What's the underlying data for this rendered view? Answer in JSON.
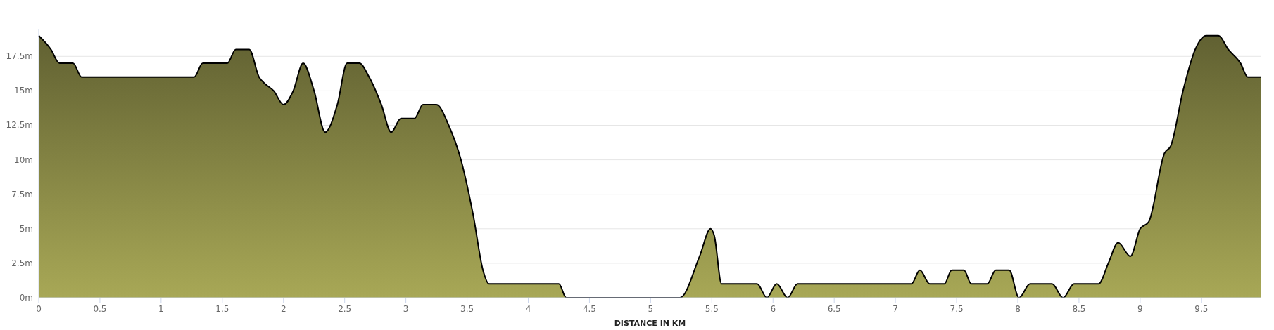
{
  "chart_data": {
    "type": "area",
    "xlabel": "DISTANCE IN KM",
    "xlim": [
      0,
      9.99
    ],
    "ylim": [
      0,
      19.5
    ],
    "xticks": [
      0,
      0.5,
      1,
      1.5,
      2,
      2.5,
      3,
      3.5,
      4,
      4.5,
      5,
      5.5,
      6,
      6.5,
      7,
      7.5,
      8,
      8.5,
      9,
      9.5
    ],
    "yticks": [
      {
        "value": 0,
        "label": "0m"
      },
      {
        "value": 2.5,
        "label": "2.5m"
      },
      {
        "value": 5,
        "label": "5m"
      },
      {
        "value": 7.5,
        "label": "7.5m"
      },
      {
        "value": 10,
        "label": "10m"
      },
      {
        "value": 12.5,
        "label": "12.5m"
      },
      {
        "value": 15,
        "label": "15m"
      },
      {
        "value": 17.5,
        "label": "17.5m"
      }
    ],
    "grid": "y",
    "series": [
      {
        "color": "#a8a856",
        "x": [
          0,
          0.1,
          0.17,
          0.28,
          0.35,
          1.27,
          1.34,
          1.54,
          1.61,
          1.72,
          1.8,
          1.85,
          1.92,
          2.0,
          2.08,
          2.16,
          2.25,
          2.34,
          2.44,
          2.52,
          2.62,
          2.7,
          2.8,
          2.88,
          2.96,
          3.07,
          3.14,
          3.25,
          3.35,
          3.45,
          3.55,
          3.63,
          3.68,
          4.25,
          4.31,
          5.24,
          5.4,
          5.49,
          5.52,
          5.58,
          5.87,
          5.95,
          6.03,
          6.12,
          6.2,
          7.13,
          7.2,
          7.28,
          7.4,
          7.46,
          7.56,
          7.62,
          7.75,
          7.82,
          7.93,
          8.01,
          8.1,
          8.28,
          8.37,
          8.46,
          8.66,
          8.74,
          8.82,
          8.92,
          9.0,
          9.07,
          9.2,
          9.25,
          9.35,
          9.45,
          9.54,
          9.64,
          9.72,
          9.82,
          9.88,
          9.99
        ],
        "values": [
          19,
          18,
          17,
          17,
          16,
          16,
          17,
          17,
          18,
          18,
          16,
          15.5,
          15,
          14,
          15,
          17,
          15,
          12,
          14,
          17,
          17,
          16,
          14,
          12,
          13,
          13,
          14,
          14,
          12.5,
          10,
          6,
          2,
          1,
          1,
          0,
          0,
          3,
          5,
          4.5,
          1,
          1,
          0,
          1,
          0,
          1,
          1,
          2,
          1,
          1,
          2,
          2,
          1,
          1,
          2,
          2,
          0,
          1,
          1,
          0,
          1,
          1,
          2.5,
          4,
          3,
          5,
          5.5,
          10.5,
          11,
          15,
          18,
          19,
          19,
          18,
          17,
          16,
          16
        ]
      }
    ]
  }
}
